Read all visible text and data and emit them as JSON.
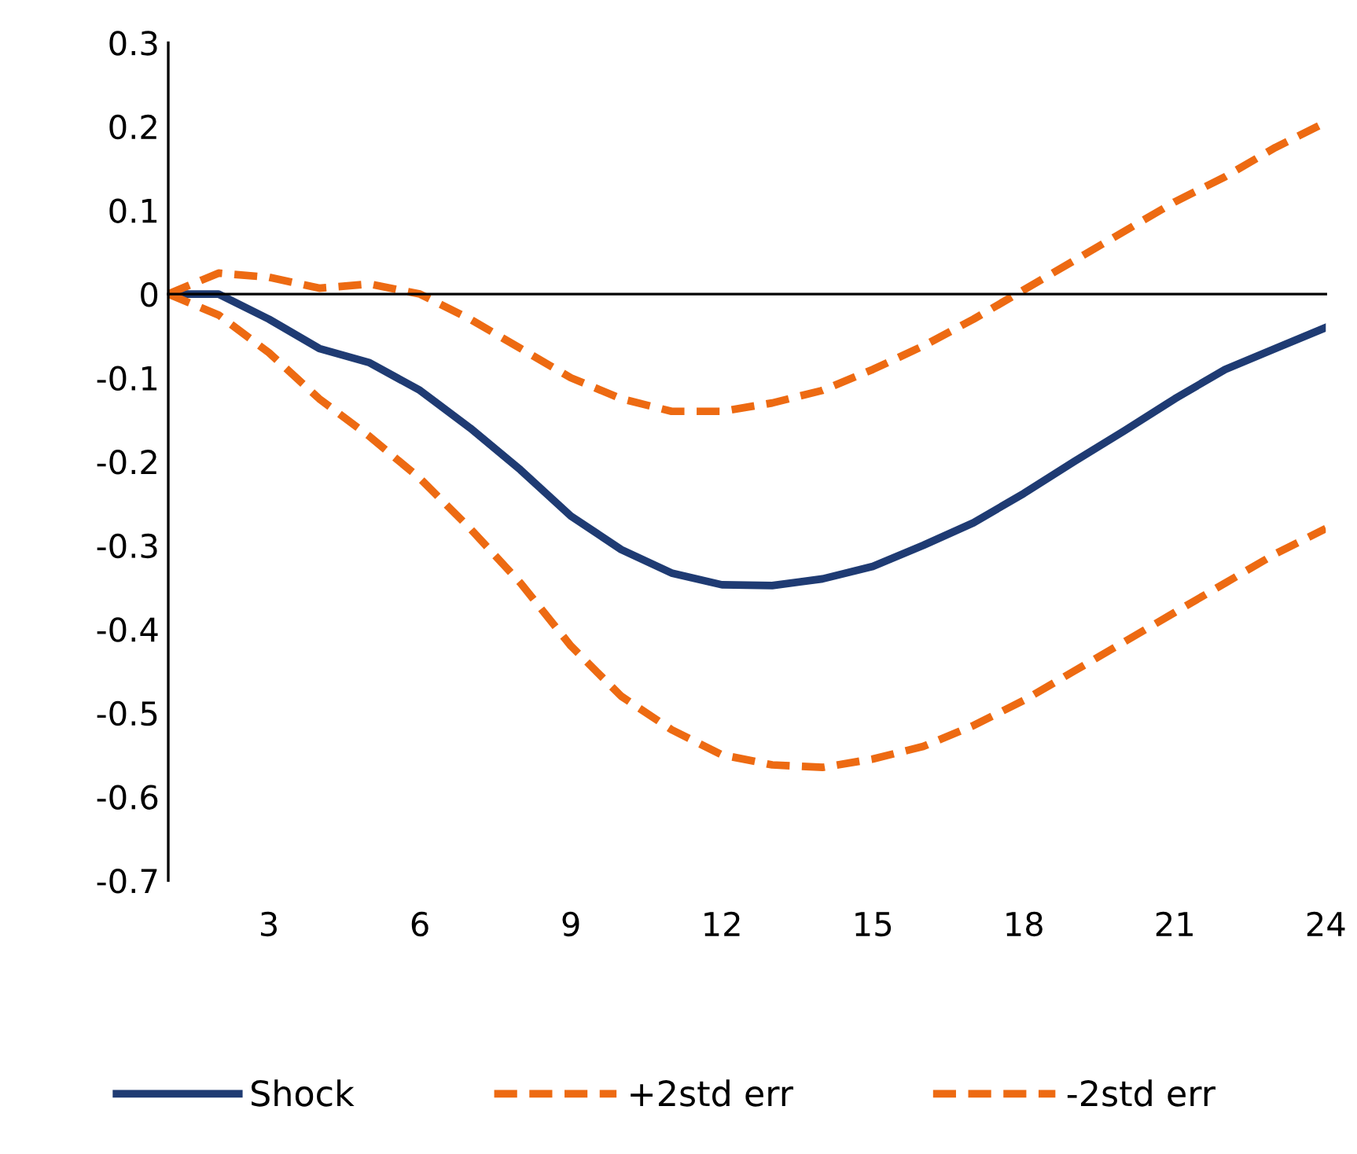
{
  "chart_data": {
    "type": "line",
    "x": [
      1,
      2,
      3,
      4,
      5,
      6,
      7,
      8,
      9,
      10,
      11,
      12,
      13,
      14,
      15,
      16,
      17,
      18,
      19,
      20,
      21,
      22,
      23,
      24
    ],
    "series": [
      {
        "name": "Shock",
        "color": "#1f3b73",
        "line_style": "solid",
        "values": [
          0,
          0,
          -0.03,
          -0.065,
          -0.082,
          -0.115,
          -0.16,
          -0.21,
          -0.265,
          -0.305,
          -0.333,
          -0.347,
          -0.348,
          -0.34,
          -0.325,
          -0.3,
          -0.273,
          -0.238,
          -0.2,
          -0.163,
          -0.125,
          -0.09,
          -0.065,
          -0.04
        ]
      },
      {
        "name": "+2std err",
        "color": "#ed6a12",
        "line_style": "dashed",
        "values": [
          0,
          0.025,
          0.02,
          0.007,
          0.012,
          0,
          -0.03,
          -0.065,
          -0.1,
          -0.125,
          -0.14,
          -0.14,
          -0.13,
          -0.115,
          -0.09,
          -0.062,
          -0.03,
          0.005,
          0.04,
          0.075,
          0.11,
          0.14,
          0.175,
          0.205
        ]
      },
      {
        "name": "-2std err",
        "color": "#ed6a12",
        "line_style": "dashed",
        "values": [
          0,
          -0.025,
          -0.07,
          -0.125,
          -0.17,
          -0.22,
          -0.28,
          -0.345,
          -0.42,
          -0.48,
          -0.52,
          -0.55,
          -0.562,
          -0.565,
          -0.555,
          -0.54,
          -0.515,
          -0.485,
          -0.45,
          -0.415,
          -0.38,
          -0.345,
          -0.31,
          -0.28
        ]
      }
    ],
    "xlim": [
      1,
      24
    ],
    "xticks": [
      3,
      6,
      9,
      12,
      15,
      18,
      21,
      24
    ],
    "ylim": [
      -0.7,
      0.3
    ],
    "yticks": [
      0.3,
      0.2,
      0.1,
      0,
      -0.1,
      -0.2,
      -0.3,
      -0.4,
      -0.5,
      -0.6,
      -0.7
    ],
    "legend": "bottom",
    "marker": "none"
  }
}
